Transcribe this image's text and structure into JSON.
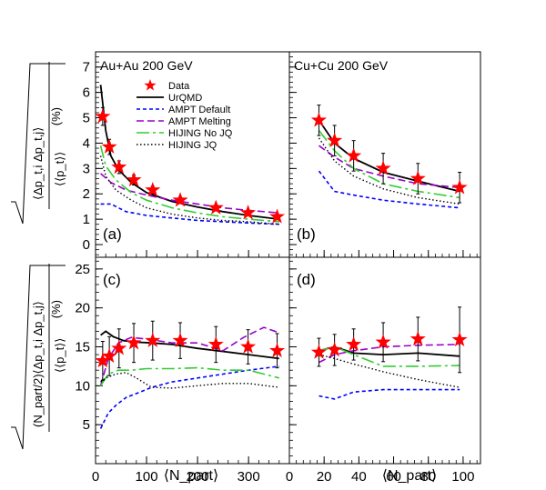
{
  "legend": {
    "data": "Data",
    "urqmd": "UrQMD",
    "ampt_default": "AMPT Default",
    "ampt_melting": "AMPT Melting",
    "hijing_nojq": "HIJING No JQ",
    "hijing_jq": "HIJING JQ"
  },
  "colors": {
    "data": "#ff0000",
    "urqmd": "#000000",
    "ampt_default": "#0000ff",
    "ampt_melting": "#9900cc",
    "hijing_nojq": "#33cc33",
    "hijing_jq": "#000000"
  },
  "labels": {
    "ylabel_top_inner": "⟨Δp_t,i Δp_t,j⟩",
    "ylabel_top_den": "⟨⟨p_t⟩⟩",
    "ylabel_top_unit": "(%)",
    "ylabel_bot_inner": "(N_part/2)⟨Δp_t,i Δp_t,j⟩",
    "ylabel_bot_den": "⟨⟨p_t⟩⟩",
    "ylabel_bot_unit": "(%)",
    "xlabel_left": "⟨N_part⟩",
    "xlabel_right": "⟨N_part⟩"
  },
  "chart_data": [
    {
      "id": "a",
      "type": "line",
      "title": "Au+Au 200 GeV",
      "panel_label": "(a)",
      "xlim": [
        0,
        380
      ],
      "ylim": [
        -0.5,
        7.6
      ],
      "xticks": [
        0,
        100,
        200,
        300
      ],
      "yticks": [
        0,
        1,
        2,
        3,
        4,
        5,
        6,
        7
      ],
      "data": {
        "x": [
          14,
          27,
          46,
          75,
          112,
          166,
          236,
          299,
          356
        ],
        "y": [
          5.05,
          3.85,
          3.05,
          2.55,
          2.15,
          1.75,
          1.45,
          1.25,
          1.1
        ],
        "err": [
          0.35,
          0.3,
          0.25,
          0.2,
          0.15,
          0.12,
          0.1,
          0.1,
          0.1
        ]
      },
      "series": [
        {
          "key": "urqmd",
          "x": [
            10,
            20,
            30,
            45,
            70,
            100,
            150,
            200,
            250,
            300,
            360
          ],
          "y": [
            6.3,
            4.5,
            3.5,
            2.95,
            2.45,
            2.05,
            1.7,
            1.48,
            1.3,
            1.15,
            1.0
          ]
        },
        {
          "key": "ampt_default",
          "x": [
            10,
            30,
            60,
            100,
            150,
            200,
            250,
            300,
            360
          ],
          "y": [
            1.6,
            1.6,
            1.3,
            1.15,
            1.05,
            0.95,
            0.9,
            0.85,
            0.8
          ]
        },
        {
          "key": "ampt_melting",
          "x": [
            10,
            30,
            60,
            100,
            150,
            200,
            250,
            300,
            360
          ],
          "y": [
            2.8,
            2.45,
            2.15,
            1.95,
            1.75,
            1.6,
            1.45,
            1.35,
            1.25
          ]
        },
        {
          "key": "hijing_nojq",
          "x": [
            10,
            20,
            40,
            70,
            100,
            150,
            200,
            250,
            300,
            360
          ],
          "y": [
            3.9,
            3.1,
            2.55,
            2.05,
            1.75,
            1.45,
            1.25,
            1.1,
            1.0,
            0.9
          ]
        },
        {
          "key": "hijing_jq",
          "x": [
            10,
            20,
            40,
            70,
            100,
            150,
            200,
            250,
            300,
            360
          ],
          "y": [
            3.5,
            2.7,
            2.15,
            1.75,
            1.45,
            1.2,
            1.05,
            0.95,
            0.9,
            0.8
          ]
        }
      ]
    },
    {
      "id": "b",
      "type": "line",
      "title": "Cu+Cu 200 GeV",
      "panel_label": "(b)",
      "xlim": [
        0,
        110
      ],
      "ylim": [
        -0.5,
        7.6
      ],
      "xticks": [
        0,
        20,
        40,
        60,
        80,
        100
      ],
      "yticks": [
        0,
        1,
        2,
        3,
        4,
        5,
        6,
        7
      ],
      "data": {
        "x": [
          17,
          26,
          37,
          54,
          74,
          98
        ],
        "y": [
          4.9,
          4.1,
          3.5,
          3.0,
          2.6,
          2.25
        ],
        "err": [
          0.6,
          0.6,
          0.6,
          0.6,
          0.6,
          0.6
        ]
      },
      "series": [
        {
          "key": "urqmd",
          "x": [
            17,
            26,
            37,
            54,
            74,
            98
          ],
          "y": [
            4.9,
            4.0,
            3.4,
            2.85,
            2.5,
            2.1
          ]
        },
        {
          "key": "ampt_default",
          "x": [
            17,
            26,
            37,
            54,
            74,
            98
          ],
          "y": [
            2.9,
            2.1,
            1.95,
            1.75,
            1.6,
            1.45
          ]
        },
        {
          "key": "ampt_melting",
          "x": [
            17,
            26,
            37,
            54,
            74,
            98
          ],
          "y": [
            3.9,
            3.45,
            3.0,
            2.7,
            2.4,
            2.25
          ]
        },
        {
          "key": "hijing_nojq",
          "x": [
            17,
            26,
            37,
            54,
            74,
            98
          ],
          "y": [
            4.5,
            3.7,
            3.0,
            2.4,
            2.1,
            1.85
          ]
        },
        {
          "key": "hijing_jq",
          "x": [
            17,
            26,
            37,
            54,
            74,
            98
          ],
          "y": [
            4.2,
            3.3,
            2.7,
            2.2,
            1.85,
            1.6
          ]
        }
      ]
    },
    {
      "id": "c",
      "type": "line",
      "title": "",
      "panel_label": "(c)",
      "xlim": [
        0,
        380
      ],
      "ylim": [
        0,
        26.5
      ],
      "xticks": [
        0,
        100,
        200,
        300
      ],
      "yticks": [
        5,
        10,
        15,
        20,
        25
      ],
      "data": {
        "x": [
          14,
          27,
          46,
          75,
          112,
          166,
          236,
          299,
          356
        ],
        "y": [
          13.2,
          13.8,
          14.8,
          15.5,
          15.8,
          15.8,
          15.3,
          15.0,
          14.5
        ],
        "err": [
          2.5,
          2.5,
          2.5,
          2.5,
          2.5,
          2.3,
          2.3,
          2.2,
          2.2
        ]
      },
      "series": [
        {
          "key": "urqmd",
          "x": [
            10,
            20,
            35,
            55,
            80,
            110,
            150,
            200,
            250,
            300,
            360
          ],
          "y": [
            16.5,
            17.0,
            16.3,
            15.8,
            15.6,
            15.5,
            15.3,
            14.8,
            14.4,
            14.0,
            13.5
          ]
        },
        {
          "key": "ampt_default",
          "x": [
            10,
            25,
            40,
            60,
            80,
            110,
            150,
            200,
            250,
            300,
            360
          ],
          "y": [
            4.5,
            6.5,
            7.5,
            8.5,
            9.0,
            9.8,
            10.5,
            11.0,
            11.5,
            12.0,
            12.5
          ]
        },
        {
          "key": "ampt_melting",
          "x": [
            10,
            25,
            45,
            70,
            100,
            150,
            200,
            250,
            290,
            330,
            360
          ],
          "y": [
            10.0,
            13.5,
            15.5,
            16.2,
            16.0,
            15.5,
            15.5,
            14.5,
            16.2,
            17.5,
            16.8
          ]
        },
        {
          "key": "hijing_nojq",
          "x": [
            10,
            25,
            45,
            70,
            100,
            150,
            200,
            250,
            300,
            360
          ],
          "y": [
            10.0,
            11.5,
            12.0,
            12.0,
            12.2,
            12.2,
            12.3,
            12.0,
            12.0,
            11.0
          ]
        },
        {
          "key": "hijing_jq",
          "x": [
            10,
            20,
            40,
            60,
            80,
            110,
            150,
            200,
            250,
            300,
            360
          ],
          "y": [
            10.5,
            11.0,
            11.5,
            11.7,
            11.0,
            9.8,
            9.7,
            10.0,
            10.3,
            10.3,
            9.8
          ]
        }
      ]
    },
    {
      "id": "d",
      "type": "line",
      "title": "",
      "panel_label": "(d)",
      "xlim": [
        0,
        110
      ],
      "ylim": [
        0,
        26.5
      ],
      "xticks": [
        0,
        20,
        40,
        60,
        80,
        100
      ],
      "yticks": [
        5,
        10,
        15,
        20,
        25
      ],
      "data": {
        "x": [
          17,
          26,
          37,
          54,
          74,
          98
        ],
        "y": [
          14.3,
          14.6,
          15.3,
          15.6,
          16.0,
          15.9
        ],
        "err": [
          1.8,
          2.0,
          2.0,
          2.5,
          2.8,
          4.2
        ]
      },
      "series": [
        {
          "key": "urqmd",
          "x": [
            17,
            26,
            37,
            54,
            74,
            98
          ],
          "y": [
            14.5,
            15.0,
            14.2,
            14.0,
            14.2,
            13.8
          ]
        },
        {
          "key": "ampt_default",
          "x": [
            17,
            26,
            37,
            54,
            74,
            98
          ],
          "y": [
            8.7,
            8.3,
            9.2,
            9.5,
            9.5,
            9.5
          ]
        },
        {
          "key": "ampt_melting",
          "x": [
            17,
            26,
            37,
            54,
            74,
            98
          ],
          "y": [
            13.0,
            14.0,
            14.5,
            15.0,
            15.2,
            15.3
          ]
        },
        {
          "key": "hijing_nojq",
          "x": [
            17,
            26,
            37,
            54,
            74,
            98
          ],
          "y": [
            14.5,
            15.0,
            14.0,
            12.5,
            12.5,
            12.6
          ]
        },
        {
          "key": "hijing_jq",
          "x": [
            17,
            26,
            37,
            54,
            74,
            98
          ],
          "y": [
            14.0,
            13.5,
            12.8,
            11.8,
            10.8,
            9.8
          ]
        }
      ]
    }
  ]
}
